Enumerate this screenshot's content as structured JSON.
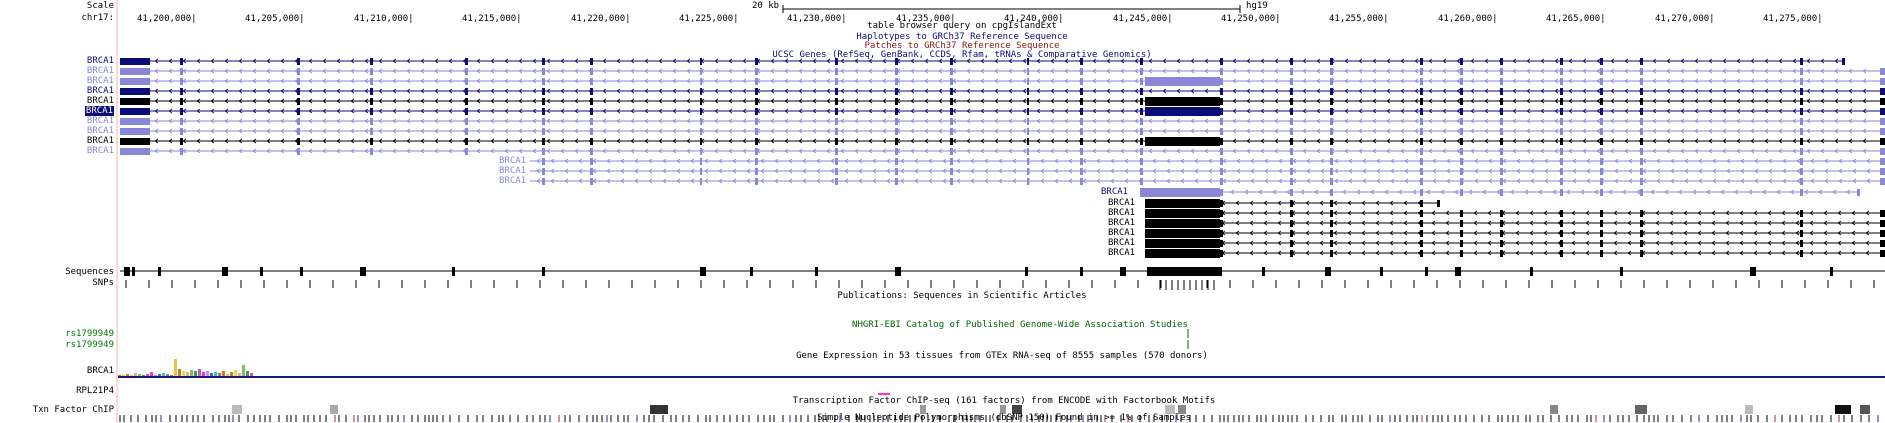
{
  "ruler": {
    "scale_label": "Scale",
    "chrom_label": "chr17:",
    "scale_value": "20 kb",
    "assembly": "hg19",
    "ticks": [
      "41,200,000|",
      "41,205,000|",
      "41,210,000|",
      "41,215,000|",
      "41,220,000|",
      "41,225,000|",
      "41,230,000|",
      "41,235,000|",
      "41,240,000|",
      "41,245,000|",
      "41,250,000|",
      "41,255,000|",
      "41,260,000|",
      "41,265,000|",
      "41,270,000|",
      "41,275,000|"
    ]
  },
  "track_titles": {
    "table_browser": "table browser query on cpgIslandExt",
    "haplotypes": "Haplotypes to GRCh37 Reference Sequence",
    "patches": "Patches to GRCh37 Reference Sequence",
    "ucsc_genes": "UCSC Genes (RefSeq, GenBank, CCDS, Rfam, tRNAs & Comparative Genomics)",
    "publications": "Publications: Sequences in Scientific Articles",
    "gwas": "NHGRI-EBI Catalog of Published Genome-Wide Association Studies",
    "gtex": "Gene Expression in 53 tissues from GTEx RNA-seq of 8555 samples (570 donors)",
    "txn_factor": "Transcription Factor ChIP-seq (161 factors) from ENCODE with Factorbook Motifs",
    "snp150": "Simple Nucleotide Polymorphisms (dbSNP 150) Found in >= 1% of Samples"
  },
  "left_labels": {
    "genes": [
      "BRCA1",
      "BRCA1",
      "BRCA1",
      "BRCA1",
      "BRCA1",
      "BRCA1",
      "BRCA1",
      "BRCA1",
      "BRCA1",
      "BRCA1"
    ],
    "sequences": "Sequences",
    "snps": "SNPs",
    "rs1": "rs1799949",
    "rs2": "rs1799949",
    "gtex_gene": "BRCA1",
    "rpl": "RPL21P4",
    "txn": "Txn Factor ChIP"
  },
  "inline_gene_labels": [
    "BRCA1",
    "BRCA1",
    "BRCA1",
    "BRCA1",
    "BRCA1",
    "BRCA1",
    "BRCA1",
    "BRCA1",
    "BRCA1",
    "BRCA1"
  ],
  "colors": {
    "gene_dark": "#0c0c78",
    "gene_light": "#8888d6",
    "gene_black": "#000000",
    "highlight_label": "#0c0c78",
    "gwas_green": "#006400",
    "snp_label_green": "#007800",
    "title_blue": "#0c0c78",
    "title_red": "#8c1414",
    "guideline": "#f0b8b8",
    "pink_marker": "#ff33cc"
  }
}
